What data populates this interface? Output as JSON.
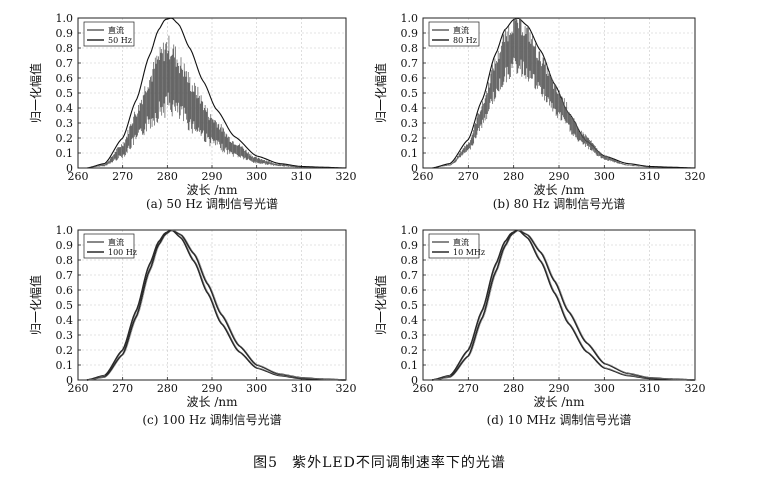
{
  "figure": {
    "label": "图5",
    "caption": "紫外LED不同调制速率下的光谱"
  },
  "colors": {
    "axis": "#222222",
    "grid": "#c8c8c8",
    "curve": "#2a2a2a",
    "noise": "#555555",
    "envelope": "#111111"
  },
  "chart_data": [
    {
      "type": "line",
      "panel_caption": "(a) 50 Hz 调制信号光谱",
      "xlabel": "波长 /nm",
      "ylabel": "归一化幅值",
      "xlim": [
        260,
        320
      ],
      "ylim": [
        0,
        1.0
      ],
      "xticks": [
        260,
        270,
        280,
        290,
        300,
        310,
        320
      ],
      "yticks": [
        0,
        0.1,
        0.2,
        0.3,
        0.4,
        0.5,
        0.6,
        0.7,
        0.8,
        0.9,
        1.0
      ],
      "grid": true,
      "legend": "top-left",
      "series": [
        {
          "name": "直流",
          "style": "envelope",
          "x": [
            262,
            266,
            270,
            273,
            276,
            278,
            279.5,
            281,
            282.5,
            285,
            288,
            291,
            295,
            300,
            305,
            310,
            315,
            320
          ],
          "y": [
            0.0,
            0.03,
            0.2,
            0.45,
            0.75,
            0.92,
            0.99,
            1.0,
            0.96,
            0.8,
            0.58,
            0.39,
            0.21,
            0.08,
            0.03,
            0.01,
            0.005,
            0.0
          ]
        },
        {
          "name": "50 Hz",
          "style": "noisy",
          "x": [
            262,
            266,
            270,
            273,
            276,
            278,
            280,
            281,
            283,
            286,
            290,
            295,
            300,
            305,
            310,
            320
          ],
          "y": [
            0.0,
            0.02,
            0.12,
            0.28,
            0.45,
            0.55,
            0.62,
            0.6,
            0.52,
            0.4,
            0.25,
            0.13,
            0.05,
            0.02,
            0.005,
            0.0
          ],
          "spread": 0.45
        }
      ]
    },
    {
      "type": "line",
      "panel_caption": "(b) 80 Hz 调制信号光谱",
      "xlabel": "波长 /nm",
      "ylabel": "归一化幅值",
      "xlim": [
        260,
        320
      ],
      "ylim": [
        0,
        1.0
      ],
      "xticks": [
        260,
        270,
        280,
        290,
        300,
        310,
        320
      ],
      "yticks": [
        0,
        0.1,
        0.2,
        0.3,
        0.4,
        0.5,
        0.6,
        0.7,
        0.8,
        0.9,
        1.0
      ],
      "grid": true,
      "legend": "top-left",
      "series": [
        {
          "name": "直流",
          "style": "envelope",
          "x": [
            262,
            266,
            270,
            273,
            276,
            278,
            280,
            281,
            283,
            286,
            289,
            292,
            296,
            300,
            305,
            310,
            315,
            320
          ],
          "y": [
            0.0,
            0.03,
            0.19,
            0.45,
            0.76,
            0.92,
            0.99,
            1.0,
            0.95,
            0.78,
            0.56,
            0.37,
            0.18,
            0.08,
            0.03,
            0.01,
            0.005,
            0.0
          ]
        },
        {
          "name": "80 Hz",
          "style": "noisy",
          "x": [
            262,
            266,
            270,
            273,
            276,
            278,
            280,
            281,
            283,
            286,
            290,
            295,
            300,
            305,
            310,
            320
          ],
          "y": [
            0.0,
            0.02,
            0.14,
            0.35,
            0.6,
            0.74,
            0.82,
            0.82,
            0.77,
            0.62,
            0.42,
            0.2,
            0.07,
            0.02,
            0.005,
            0.0
          ],
          "spread": 0.25
        }
      ]
    },
    {
      "type": "line",
      "panel_caption": "(c) 100 Hz 调制信号光谱",
      "xlabel": "波长 /nm",
      "ylabel": "归一化幅值",
      "xlim": [
        260,
        320
      ],
      "ylim": [
        0,
        1.0
      ],
      "xticks": [
        260,
        270,
        280,
        290,
        300,
        310,
        320
      ],
      "yticks": [
        0,
        0.1,
        0.2,
        0.3,
        0.4,
        0.5,
        0.6,
        0.7,
        0.8,
        0.9,
        1.0
      ],
      "grid": true,
      "legend": "top-left",
      "series": [
        {
          "name": "直流",
          "style": "smooth",
          "x": [
            262,
            266,
            270,
            273,
            276,
            278,
            279.5,
            281,
            283,
            286,
            289,
            292,
            296,
            300,
            305,
            310,
            315,
            320
          ],
          "y": [
            0.0,
            0.03,
            0.2,
            0.46,
            0.77,
            0.92,
            0.98,
            1.0,
            0.95,
            0.79,
            0.58,
            0.38,
            0.19,
            0.08,
            0.03,
            0.01,
            0.005,
            0.0
          ]
        },
        {
          "name": "100 Hz",
          "style": "smooth",
          "x": [
            262,
            266,
            270,
            273,
            276,
            278,
            279.5,
            281,
            283,
            286,
            289,
            292,
            296,
            300,
            305,
            310,
            315,
            320
          ],
          "y": [
            0.0,
            0.02,
            0.17,
            0.42,
            0.73,
            0.9,
            0.97,
            1.0,
            0.97,
            0.84,
            0.64,
            0.44,
            0.23,
            0.1,
            0.04,
            0.015,
            0.005,
            0.0
          ]
        }
      ]
    },
    {
      "type": "line",
      "panel_caption": "(d) 10 MHz 调制信号光谱",
      "xlabel": "波长 /nm",
      "ylabel": "归一化幅值",
      "xlim": [
        260,
        320
      ],
      "ylim": [
        0,
        1.0
      ],
      "xticks": [
        260,
        270,
        280,
        290,
        300,
        310,
        320
      ],
      "yticks": [
        0,
        0.1,
        0.2,
        0.3,
        0.4,
        0.5,
        0.6,
        0.7,
        0.8,
        0.9,
        1.0
      ],
      "grid": true,
      "legend": "top-left",
      "series": [
        {
          "name": "直流",
          "style": "smooth",
          "x": [
            262,
            266,
            270,
            273,
            276,
            278,
            279.5,
            281,
            283,
            286,
            289,
            292,
            296,
            300,
            305,
            310,
            315,
            320
          ],
          "y": [
            0.0,
            0.03,
            0.2,
            0.46,
            0.77,
            0.92,
            0.98,
            1.0,
            0.95,
            0.79,
            0.58,
            0.38,
            0.19,
            0.08,
            0.03,
            0.01,
            0.005,
            0.0
          ]
        },
        {
          "name": "10 MHz",
          "style": "smooth",
          "x": [
            262,
            266,
            270,
            273,
            276,
            278,
            279.5,
            281,
            283,
            286,
            289,
            292,
            296,
            300,
            305,
            310,
            315,
            320
          ],
          "y": [
            0.0,
            0.02,
            0.16,
            0.41,
            0.72,
            0.89,
            0.97,
            1.0,
            0.97,
            0.85,
            0.66,
            0.46,
            0.25,
            0.11,
            0.045,
            0.015,
            0.005,
            0.0
          ]
        }
      ]
    }
  ]
}
